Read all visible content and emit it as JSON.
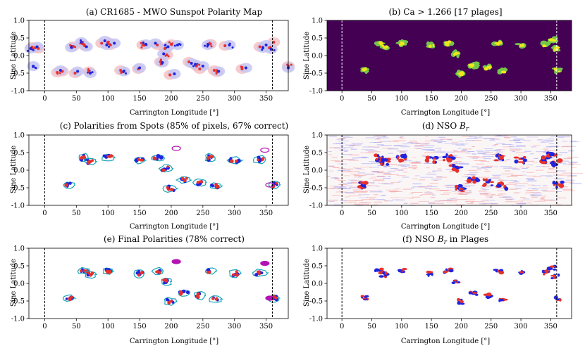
{
  "figure": {
    "x_axis_label": "Carrington Longitude [°]",
    "y_axis_label": "Sine Latitude",
    "x_ticks": [
      0,
      50,
      100,
      150,
      200,
      250,
      300,
      350
    ],
    "y_ticks": [
      "-1.0",
      "-0.5",
      "0.0",
      "0.5",
      "1.0"
    ],
    "y_tick_values": [
      -1.0,
      -0.5,
      0.0,
      0.5,
      1.0
    ],
    "xlim": [
      -25,
      385
    ],
    "ylim": [
      -1.0,
      1.0
    ],
    "boundary_lines": [
      0,
      360
    ]
  },
  "colors": {
    "positive": "#e8312a",
    "negative": "#1f24e0",
    "positive_halo": "#f1b9bd",
    "negative_halo": "#c6c7f3",
    "plage_dark": "#440154",
    "plage_green": "#74c64a",
    "plage_yellow": "#f0e61b",
    "contour_cyan": "#18a5b8",
    "contour_magenta": "#b413b4"
  },
  "chart_data": [
    {
      "panel": "a",
      "type": "scatter",
      "title": "(a) CR1685 - MWO Sunspot Polarity Map",
      "xlabel": "Carrington Longitude [°]",
      "ylabel": "Sine Latitude",
      "xlim": [
        -25,
        385
      ],
      "ylim": [
        -1.0,
        1.0
      ],
      "series": [
        {
          "values": [
            [
              -20,
              0.24
            ],
            [
              -15,
              0.22
            ],
            [
              -10,
              0.2
            ],
            [
              20,
              -0.48
            ],
            [
              28,
              -0.45
            ],
            [
              45,
              0.26
            ],
            [
              48,
              -0.5
            ],
            [
              60,
              0.33
            ],
            [
              63,
              0.28
            ],
            [
              70,
              -0.45
            ],
            [
              90,
              0.35
            ],
            [
              100,
              0.38
            ],
            [
              104,
              0.3
            ],
            [
              120,
              -0.42
            ],
            [
              148,
              -0.38
            ],
            [
              155,
              0.3
            ],
            [
              178,
              0.3
            ],
            [
              183,
              -0.18
            ],
            [
              190,
              0.2
            ],
            [
              193,
              0.02
            ],
            [
              198,
              -0.55
            ],
            [
              200,
              0.32
            ],
            [
              228,
              -0.18
            ],
            [
              240,
              -0.3
            ],
            [
              245,
              -0.38
            ],
            [
              262,
              0.33
            ],
            [
              268,
              -0.42
            ],
            [
              272,
              -0.47
            ],
            [
              285,
              0.28
            ],
            [
              312,
              -0.38
            ],
            [
              340,
              0.25
            ],
            [
              355,
              0.22
            ],
            [
              362,
              0.38
            ],
            [
              385,
              -0.3
            ]
          ]
        },
        {
          "values": [
            [
              -22,
              0.2
            ],
            [
              -12,
              0.25
            ],
            [
              -18,
              -0.3
            ],
            [
              25,
              -0.42
            ],
            [
              42,
              0.23
            ],
            [
              52,
              -0.45
            ],
            [
              58,
              0.38
            ],
            [
              66,
              0.25
            ],
            [
              72,
              -0.5
            ],
            [
              95,
              0.42
            ],
            [
              98,
              0.3
            ],
            [
              110,
              0.35
            ],
            [
              125,
              -0.45
            ],
            [
              150,
              -0.35
            ],
            [
              160,
              0.32
            ],
            [
              175,
              0.35
            ],
            [
              186,
              -0.2
            ],
            [
              188,
              0.05
            ],
            [
              195,
              0.25
            ],
            [
              205,
              -0.52
            ],
            [
              210,
              0.3
            ],
            [
              232,
              -0.22
            ],
            [
              238,
              -0.25
            ],
            [
              250,
              -0.3
            ],
            [
              258,
              0.3
            ],
            [
              275,
              -0.45
            ],
            [
              292,
              0.3
            ],
            [
              318,
              -0.35
            ],
            [
              345,
              0.22
            ],
            [
              350,
              0.3
            ],
            [
              358,
              0.18
            ],
            [
              385,
              -0.35
            ]
          ]
        }
      ]
    },
    {
      "panel": "b",
      "type": "heatmap",
      "title": "(b) Ca > 1.266 [17 plages]",
      "xlabel": "Carrington Longitude [°]",
      "ylabel": "Sine Latitude",
      "xlim": [
        -25,
        385
      ],
      "ylim": [
        -1.0,
        1.0
      ],
      "plage_count": 17,
      "plages": [
        [
          38,
          -0.42
        ],
        [
          62,
          0.35
        ],
        [
          72,
          0.25
        ],
        [
          100,
          0.35
        ],
        [
          150,
          0.28
        ],
        [
          178,
          0.35
        ],
        [
          192,
          0.05
        ],
        [
          198,
          -0.52
        ],
        [
          220,
          -0.28
        ],
        [
          245,
          -0.35
        ],
        [
          262,
          0.35
        ],
        [
          270,
          -0.45
        ],
        [
          300,
          0.28
        ],
        [
          340,
          0.3
        ],
        [
          352,
          0.45
        ],
        [
          358,
          0.2
        ],
        [
          362,
          -0.42
        ]
      ]
    },
    {
      "panel": "c",
      "type": "scatter",
      "title": "(c) Polarities from Spots (85% of pixels, 67% correct)",
      "xlabel": "Carrington Longitude [°]",
      "ylabel": "Sine Latitude",
      "xlim": [
        -25,
        385
      ],
      "ylim": [
        -1.0,
        1.0
      ],
      "pixel_fraction_percent": 85,
      "correct_percent": 67
    },
    {
      "panel": "d",
      "type": "heatmap",
      "title": "(d) NSO B_r",
      "title_text": "(d) NSO ",
      "title_symbol": "B",
      "title_subscript": "r",
      "xlabel": "Carrington Longitude [°]",
      "ylabel": "Sine Latitude",
      "xlim": [
        -25,
        385
      ],
      "ylim": [
        -1.0,
        1.0
      ]
    },
    {
      "panel": "e",
      "type": "scatter",
      "title": "(e) Final Polarities (78% correct)",
      "xlabel": "Carrington Longitude [°]",
      "ylabel": "Sine Latitude",
      "xlim": [
        -25,
        385
      ],
      "ylim": [
        -1.0,
        1.0
      ],
      "correct_percent": 78
    },
    {
      "panel": "f",
      "type": "heatmap",
      "title": "(f) NSO B_r in Plages",
      "title_text": "(f) NSO ",
      "title_symbol": "B",
      "title_subscript": "r",
      "title_suffix": " in Plages",
      "xlabel": "Carrington Longitude [°]",
      "ylabel": "Sine Latitude",
      "xlim": [
        -25,
        385
      ],
      "ylim": [
        -1.0,
        1.0
      ]
    }
  ]
}
